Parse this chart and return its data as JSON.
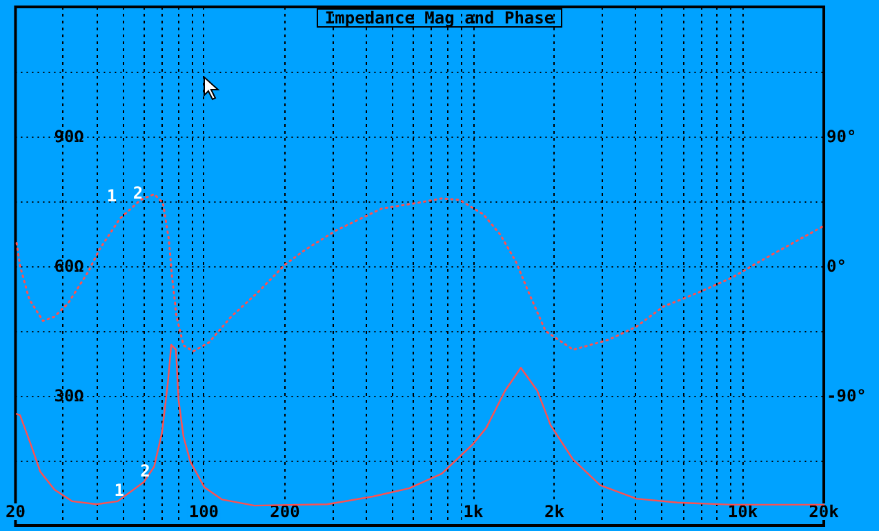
{
  "chart_data": {
    "type": "line",
    "title": "Impedance Mag and Phase",
    "xlim": [
      20,
      20000
    ],
    "log": "x",
    "grid": true,
    "xticks": [
      {
        "value": 20,
        "label": "20"
      },
      {
        "value": 30,
        "label": null
      },
      {
        "value": 40,
        "label": null
      },
      {
        "value": 50,
        "label": null
      },
      {
        "value": 60,
        "label": null
      },
      {
        "value": 70,
        "label": null
      },
      {
        "value": 80,
        "label": null
      },
      {
        "value": 90,
        "label": null
      },
      {
        "value": 100,
        "label": "100"
      },
      {
        "value": 200,
        "label": "200"
      },
      {
        "value": 300,
        "label": null
      },
      {
        "value": 400,
        "label": null
      },
      {
        "value": 500,
        "label": null
      },
      {
        "value": 600,
        "label": null
      },
      {
        "value": 700,
        "label": null
      },
      {
        "value": 800,
        "label": null
      },
      {
        "value": 900,
        "label": null
      },
      {
        "value": 1000,
        "label": "1k"
      },
      {
        "value": 2000,
        "label": "2k"
      },
      {
        "value": 3000,
        "label": null
      },
      {
        "value": 4000,
        "label": null
      },
      {
        "value": 5000,
        "label": null
      },
      {
        "value": 6000,
        "label": null
      },
      {
        "value": 7000,
        "label": null
      },
      {
        "value": 8000,
        "label": null
      },
      {
        "value": 9000,
        "label": null
      },
      {
        "value": 10000,
        "label": "10k"
      },
      {
        "value": 20000,
        "label": "20k"
      }
    ],
    "ylim": [
      0,
      120
    ],
    "yticks": [
      {
        "value": 0,
        "label": null
      },
      {
        "value": 15,
        "label": null
      },
      {
        "value": 30,
        "label": "30Ω"
      },
      {
        "value": 45,
        "label": null
      },
      {
        "value": 60,
        "label": "60Ω"
      },
      {
        "value": 75,
        "label": null
      },
      {
        "value": 90,
        "label": "90Ω"
      },
      {
        "value": 105,
        "label": null
      },
      {
        "value": 120,
        "label": null
      }
    ],
    "y2lim": [
      -180,
      180
    ],
    "y2ticks": [
      {
        "value": -180,
        "label": null
      },
      {
        "value": -135,
        "label": null
      },
      {
        "value": -90,
        "label": "-90°"
      },
      {
        "value": -45,
        "label": null
      },
      {
        "value": 0,
        "label": "0°"
      },
      {
        "value": 45,
        "label": null
      },
      {
        "value": 90,
        "label": "90°"
      },
      {
        "value": 135,
        "label": null
      },
      {
        "value": 180,
        "label": null
      }
    ],
    "series": [
      {
        "color": "#ff5050",
        "line_style": "solid",
        "x": [
          20.2,
          20.8,
          22.9,
          24.7,
          27.9,
          32.5,
          40,
          47.9,
          60,
          65.4,
          70,
          73.6,
          75.7,
          78.8,
          80.6,
          84.1,
          89.2,
          100.6,
          117,
          154,
          287,
          424,
          578,
          764,
          1000,
          1118,
          1313,
          1502,
          1728,
          1937,
          2350,
          2960,
          4030,
          5720,
          9120,
          20000
        ],
        "values": [
          25.8,
          25.5,
          18.4,
          12.5,
          8.3,
          5.6,
          4.9,
          5.6,
          10.1,
          13.6,
          21.6,
          33.3,
          41.8,
          40.7,
          29,
          20.5,
          14.7,
          8.8,
          6,
          4.6,
          4.9,
          6.7,
          8.6,
          12,
          18.9,
          22.6,
          31.2,
          36.5,
          31.2,
          23.2,
          15.2,
          9.3,
          6.2,
          5.3,
          4.8,
          4.8
        ]
      },
      {
        "color": "#ff5050",
        "line_style": "dotted",
        "axis": "y2",
        "x": [
          20.2,
          20.8,
          22.5,
          25.3,
          27.9,
          31.3,
          37.2,
          41.1,
          48.8,
          58.2,
          65.4,
          70.5,
          74.1,
          76.2,
          79.2,
          84.1,
          91.5,
          104.4,
          126.4,
          159,
          200,
          236,
          311,
          457,
          622,
          764,
          890,
          1090,
          1259,
          1441,
          1587,
          1854,
          2350,
          3190,
          4030,
          5080,
          6710,
          9120,
          11490,
          20000
        ],
        "values": [
          16,
          0,
          -23,
          -38,
          -35,
          -26,
          -4,
          12,
          33,
          46,
          50,
          44,
          19,
          -7,
          -35,
          -55,
          -59,
          -53,
          -35,
          -18,
          1,
          11,
          25,
          40,
          44,
          47,
          46,
          36,
          22,
          3,
          -16,
          -45,
          -58,
          -51,
          -42,
          -28,
          -19,
          -8,
          3,
          28
        ]
      }
    ],
    "annotations": [
      {
        "text": "1",
        "x": 48.5,
        "y": 5.6
      },
      {
        "text": "2",
        "x": 60.6,
        "y": 10
      },
      "1",
      "2"
    ]
  }
}
